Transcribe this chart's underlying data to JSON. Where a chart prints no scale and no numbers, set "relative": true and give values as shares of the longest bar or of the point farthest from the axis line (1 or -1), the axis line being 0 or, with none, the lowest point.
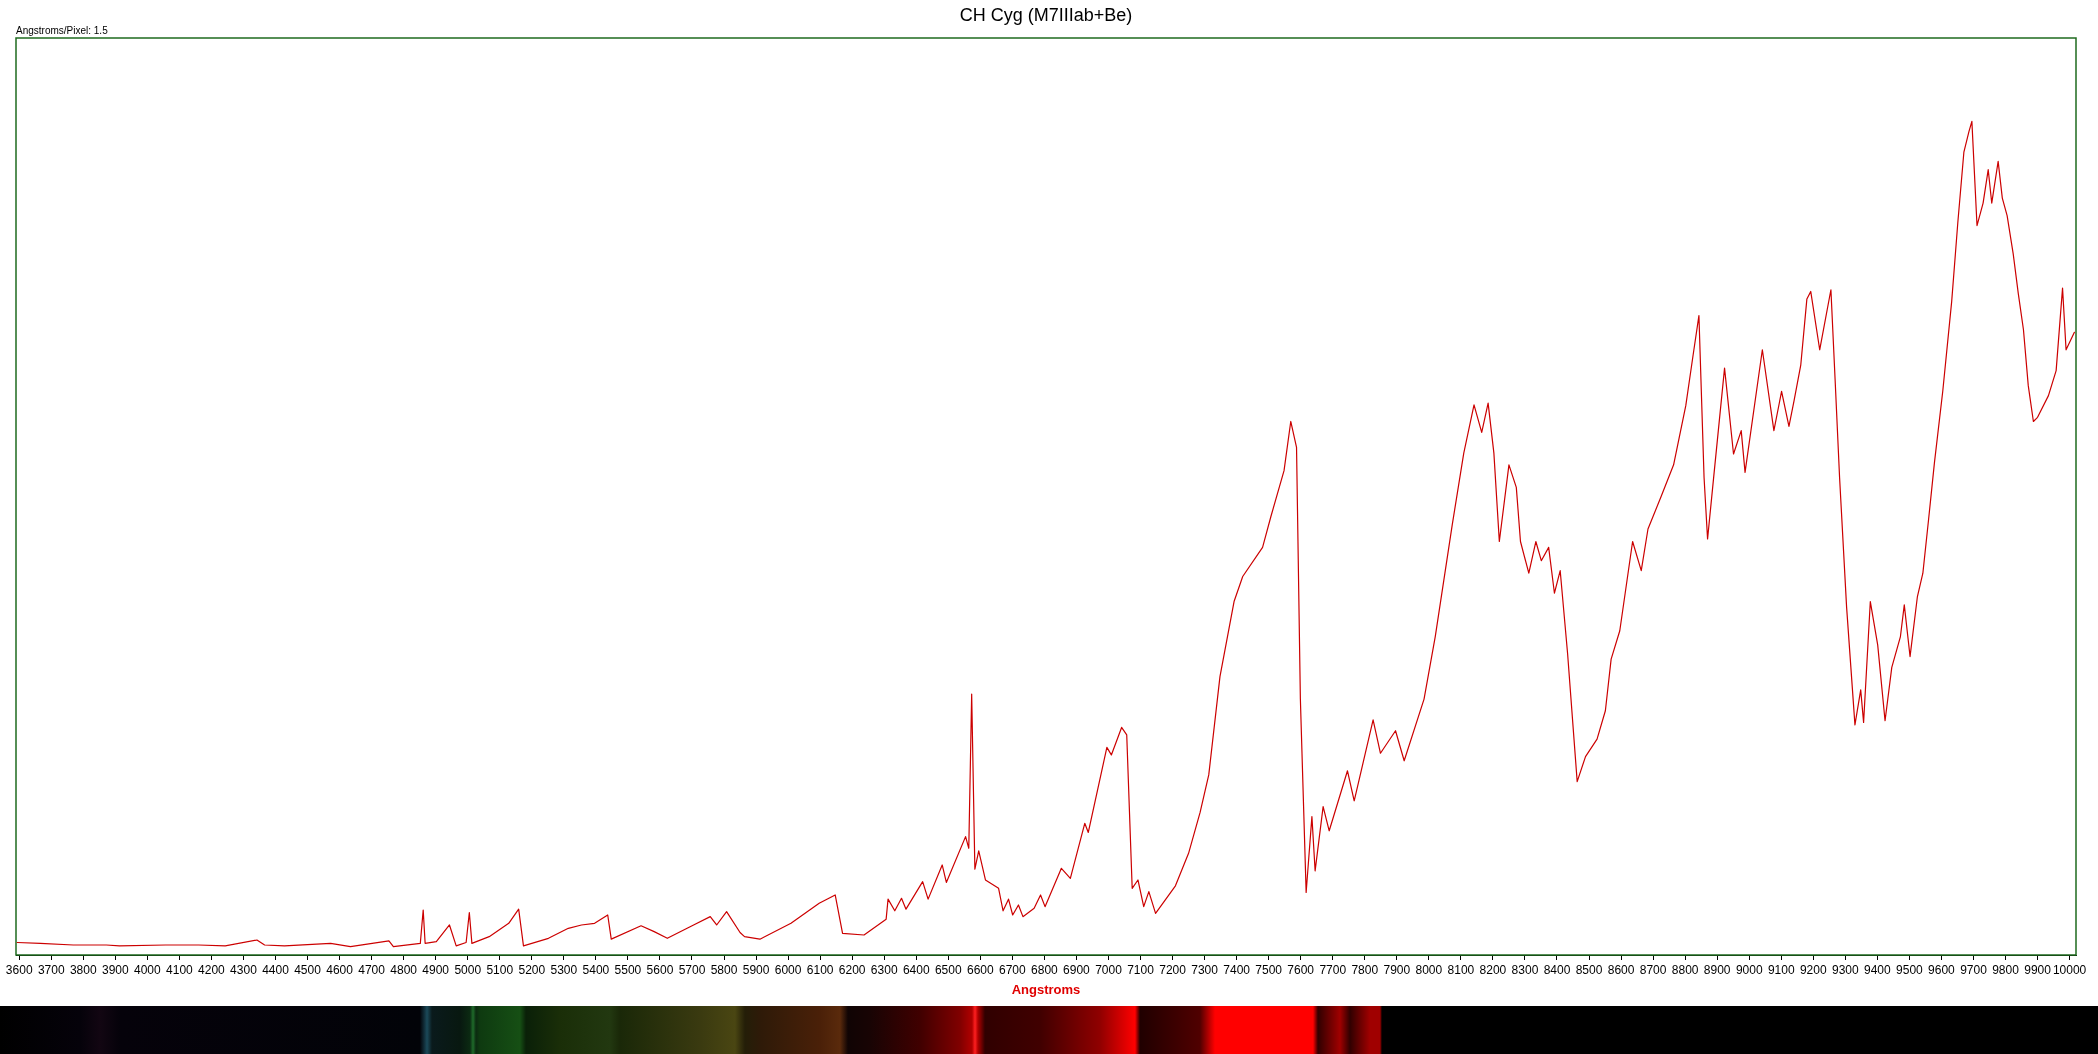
{
  "chart_data": {
    "type": "line",
    "title": "CH Cyg (M7IIIab+Be)",
    "xlabel": "Angstroms",
    "annotations": [
      "Angstroms/Pixel: 1.5"
    ],
    "relative": true,
    "color": "#cc0000",
    "marker": "none",
    "xlim": [
      3590,
      10020
    ],
    "xticks": [
      3600,
      3700,
      3800,
      3900,
      4000,
      4100,
      4200,
      4300,
      4400,
      4500,
      4600,
      4700,
      4800,
      4900,
      5000,
      5100,
      5200,
      5300,
      5400,
      5500,
      5600,
      5700,
      5800,
      5900,
      6000,
      6100,
      6200,
      6300,
      6400,
      6500,
      6600,
      6700,
      6800,
      6900,
      7000,
      7100,
      7200,
      7300,
      7400,
      7500,
      7600,
      7700,
      7800,
      7900,
      8000,
      8100,
      8200,
      8300,
      8400,
      8500,
      8600,
      8700,
      8800,
      8900,
      9000,
      9100,
      9200,
      9300,
      9400,
      9500,
      9600,
      9700,
      9800,
      9900,
      10000
    ],
    "x": [
      3594,
      3666,
      3769,
      3872,
      3913,
      4057,
      4160,
      4243,
      4342,
      4366,
      4428,
      4572,
      4634,
      4754,
      4768,
      4852,
      4861,
      4867,
      4902,
      4943,
      4964,
      4995,
      5005,
      5013,
      5067,
      5128,
      5159,
      5174,
      5252,
      5314,
      5355,
      5396,
      5437,
      5448,
      5541,
      5582,
      5623,
      5705,
      5757,
      5777,
      5808,
      5850,
      5864,
      5912,
      6009,
      6097,
      6147,
      6170,
      6237,
      6306,
      6312,
      6333,
      6354,
      6368,
      6420,
      6437,
      6481,
      6494,
      6554,
      6564,
      6573,
      6583,
      6595,
      6616,
      6657,
      6671,
      6688,
      6701,
      6719,
      6733,
      6768,
      6788,
      6802,
      6853,
      6881,
      6926,
      6937,
      6995,
      7009,
      7041,
      7057,
      7074,
      7092,
      7110,
      7126,
      7147,
      7209,
      7250,
      7286,
      7313,
      7348,
      7392,
      7419,
      7481,
      7507,
      7548,
      7569,
      7587,
      7599,
      7617,
      7635,
      7645,
      7670,
      7689,
      7746,
      7767,
      7826,
      7849,
      7896,
      7923,
      7985,
      8020,
      8073,
      8109,
      8141,
      8165,
      8185,
      8203,
      8220,
      8250,
      8273,
      8286,
      8312,
      8334,
      8351,
      8374,
      8392,
      8410,
      8433,
      8463,
      8489,
      8525,
      8551,
      8569,
      8596,
      8636,
      8663,
      8684,
      8725,
      8764,
      8802,
      8825,
      8843,
      8859,
      8870,
      8889,
      8923,
      8951,
      8975,
      8987,
      9041,
      9077,
      9101,
      9124,
      9140,
      9161,
      9180,
      9192,
      9220,
      9255,
      9268,
      9282,
      9304,
      9330,
      9348,
      9357,
      9378,
      9401,
      9424,
      9445,
      9472,
      9484,
      9502,
      9525,
      9542,
      9560,
      9578,
      9604,
      9632,
      9651,
      9670,
      9686,
      9695,
      9711,
      9730,
      9746,
      9757,
      9777,
      9790,
      9805,
      9824,
      9840,
      9856,
      9871,
      9887,
      9900,
      9934,
      9958,
      9978,
      9989,
      10015
    ],
    "values": [
      0.015,
      0.014,
      0.012,
      0.012,
      0.011,
      0.012,
      0.012,
      0.011,
      0.018,
      0.012,
      0.011,
      0.014,
      0.01,
      0.017,
      0.01,
      0.014,
      0.054,
      0.014,
      0.016,
      0.036,
      0.011,
      0.015,
      0.051,
      0.014,
      0.022,
      0.038,
      0.055,
      0.011,
      0.02,
      0.032,
      0.036,
      0.038,
      0.048,
      0.019,
      0.035,
      0.028,
      0.02,
      0.036,
      0.046,
      0.036,
      0.052,
      0.027,
      0.022,
      0.019,
      0.038,
      0.062,
      0.072,
      0.026,
      0.024,
      0.043,
      0.067,
      0.053,
      0.068,
      0.055,
      0.088,
      0.067,
      0.108,
      0.087,
      0.142,
      0.128,
      0.313,
      0.103,
      0.125,
      0.09,
      0.08,
      0.053,
      0.067,
      0.048,
      0.06,
      0.046,
      0.056,
      0.072,
      0.058,
      0.104,
      0.092,
      0.158,
      0.147,
      0.249,
      0.24,
      0.273,
      0.264,
      0.08,
      0.09,
      0.058,
      0.076,
      0.05,
      0.083,
      0.122,
      0.171,
      0.216,
      0.334,
      0.424,
      0.454,
      0.489,
      0.526,
      0.581,
      0.64,
      0.609,
      0.307,
      0.075,
      0.166,
      0.101,
      0.178,
      0.149,
      0.221,
      0.185,
      0.282,
      0.242,
      0.269,
      0.233,
      0.307,
      0.382,
      0.516,
      0.602,
      0.66,
      0.627,
      0.662,
      0.602,
      0.496,
      0.588,
      0.561,
      0.496,
      0.458,
      0.496,
      0.473,
      0.489,
      0.434,
      0.461,
      0.362,
      0.208,
      0.238,
      0.259,
      0.293,
      0.355,
      0.389,
      0.496,
      0.461,
      0.511,
      0.55,
      0.588,
      0.659,
      0.72,
      0.767,
      0.573,
      0.499,
      0.573,
      0.704,
      0.601,
      0.629,
      0.579,
      0.726,
      0.629,
      0.676,
      0.634,
      0.665,
      0.708,
      0.787,
      0.796,
      0.726,
      0.798,
      0.691,
      0.573,
      0.417,
      0.276,
      0.318,
      0.279,
      0.424,
      0.372,
      0.281,
      0.345,
      0.382,
      0.42,
      0.358,
      0.43,
      0.458,
      0.523,
      0.59,
      0.676,
      0.784,
      0.878,
      0.963,
      0.988,
      1.0,
      0.875,
      0.902,
      0.942,
      0.902,
      0.952,
      0.908,
      0.887,
      0.841,
      0.793,
      0.75,
      0.683,
      0.64,
      0.645,
      0.671,
      0.701,
      0.8,
      0.726,
      0.747
    ]
  }
}
